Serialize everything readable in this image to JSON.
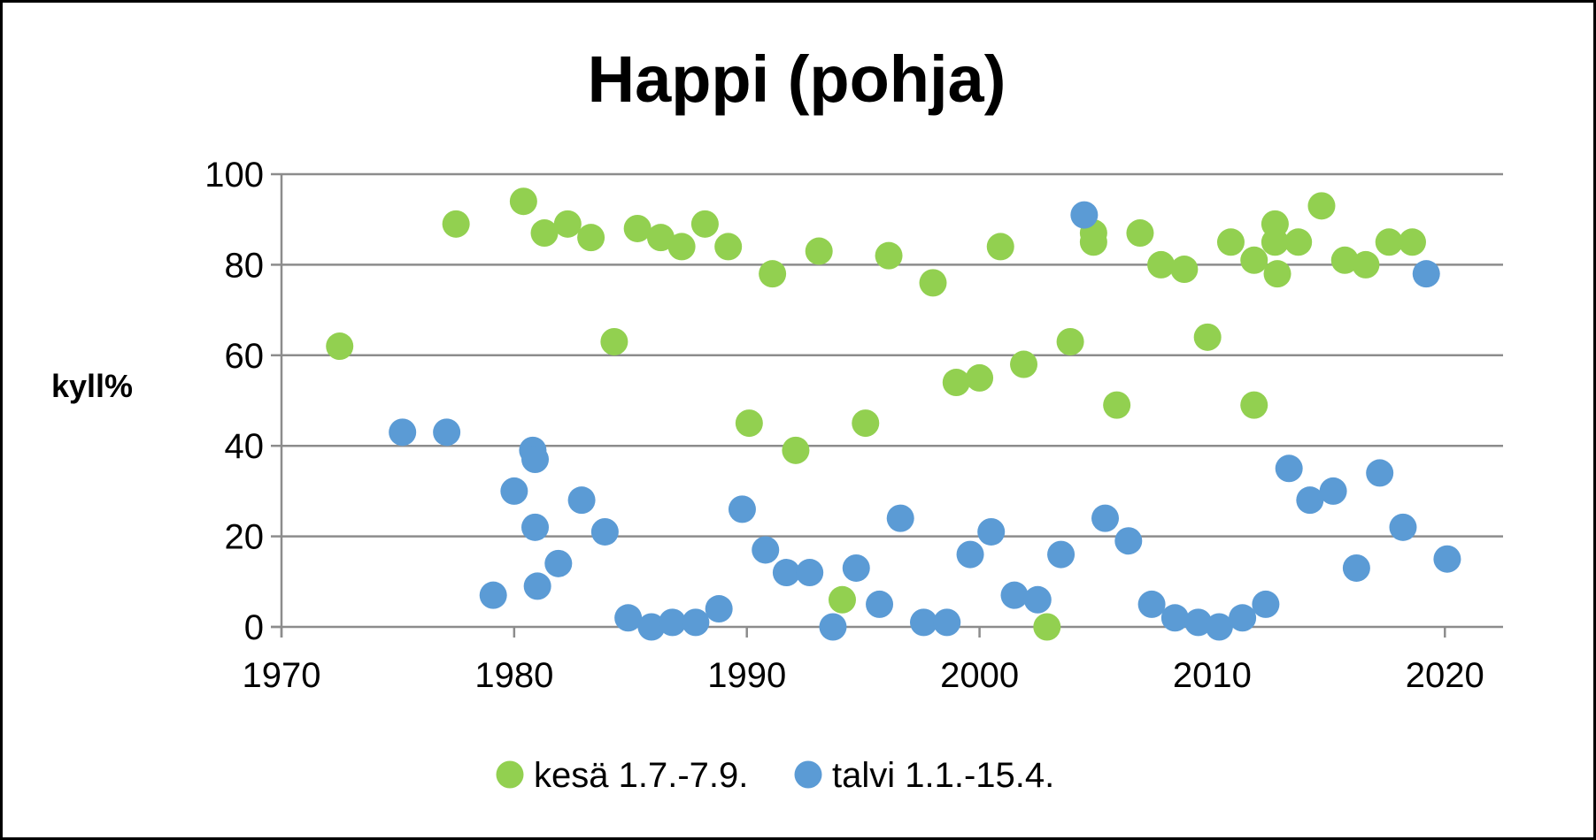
{
  "chart_data": {
    "type": "scatter",
    "title": "Happi (pohja)",
    "xlabel": "",
    "ylabel": "kyll%",
    "xlim": [
      1970,
      2022.5
    ],
    "ylim": [
      0,
      100
    ],
    "x_ticks": [
      1970,
      1980,
      1990,
      2000,
      2010,
      2020
    ],
    "y_ticks": [
      0,
      20,
      40,
      60,
      80,
      100
    ],
    "grid": "horizontal",
    "legend_position": "bottom",
    "series": [
      {
        "name": "kesä 1.7.-7.9.",
        "color": "#92d050",
        "points": [
          [
            1972.5,
            62
          ],
          [
            1977.5,
            89
          ],
          [
            1980.4,
            94
          ],
          [
            1981.3,
            87
          ],
          [
            1982.3,
            89
          ],
          [
            1983.3,
            86
          ],
          [
            1984.3,
            63
          ],
          [
            1985.3,
            88
          ],
          [
            1986.3,
            86
          ],
          [
            1987.2,
            84
          ],
          [
            1988.2,
            89
          ],
          [
            1989.2,
            84
          ],
          [
            1990.1,
            45
          ],
          [
            1991.1,
            78
          ],
          [
            1992.1,
            39
          ],
          [
            1993.1,
            83
          ],
          [
            1994.1,
            6
          ],
          [
            1995.1,
            45
          ],
          [
            1996.1,
            82
          ],
          [
            1998.0,
            76
          ],
          [
            1999.0,
            54
          ],
          [
            2000.0,
            55
          ],
          [
            2000.9,
            84
          ],
          [
            2001.9,
            58
          ],
          [
            2002.9,
            0
          ],
          [
            2003.9,
            63
          ],
          [
            2004.9,
            87
          ],
          [
            2004.9,
            85
          ],
          [
            2005.9,
            49
          ],
          [
            2006.9,
            87
          ],
          [
            2007.8,
            80
          ],
          [
            2008.8,
            79
          ],
          [
            2009.8,
            64
          ],
          [
            2010.8,
            85
          ],
          [
            2011.8,
            49
          ],
          [
            2011.8,
            81
          ],
          [
            2012.7,
            89
          ],
          [
            2012.7,
            85
          ],
          [
            2012.8,
            78
          ],
          [
            2013.7,
            85
          ],
          [
            2014.7,
            93
          ],
          [
            2015.7,
            81
          ],
          [
            2016.6,
            80
          ],
          [
            2017.6,
            85
          ],
          [
            2018.6,
            85
          ]
        ]
      },
      {
        "name": "talvi 1.1.-15.4.",
        "color": "#5b9bd5",
        "points": [
          [
            1975.2,
            43
          ],
          [
            1977.1,
            43
          ],
          [
            1979.1,
            7
          ],
          [
            1980.0,
            30
          ],
          [
            1980.8,
            39
          ],
          [
            1980.9,
            37
          ],
          [
            1980.9,
            22
          ],
          [
            1981.0,
            9
          ],
          [
            1981.9,
            14
          ],
          [
            1982.9,
            28
          ],
          [
            1983.9,
            21
          ],
          [
            1984.9,
            2
          ],
          [
            1985.9,
            0
          ],
          [
            1986.8,
            1
          ],
          [
            1987.8,
            1
          ],
          [
            1988.8,
            4
          ],
          [
            1989.8,
            26
          ],
          [
            1990.8,
            17
          ],
          [
            1991.7,
            12
          ],
          [
            1992.7,
            12
          ],
          [
            1993.7,
            0
          ],
          [
            1994.7,
            13
          ],
          [
            1995.7,
            5
          ],
          [
            1996.6,
            24
          ],
          [
            1997.6,
            1
          ],
          [
            1998.6,
            1
          ],
          [
            1999.6,
            16
          ],
          [
            2000.5,
            21
          ],
          [
            2001.5,
            7
          ],
          [
            2002.5,
            6
          ],
          [
            2003.5,
            16
          ],
          [
            2004.5,
            91
          ],
          [
            2005.4,
            24
          ],
          [
            2006.4,
            19
          ],
          [
            2007.4,
            5
          ],
          [
            2008.4,
            2
          ],
          [
            2009.4,
            1
          ],
          [
            2010.3,
            0
          ],
          [
            2011.3,
            2
          ],
          [
            2012.3,
            5
          ],
          [
            2013.3,
            35
          ],
          [
            2014.2,
            28
          ],
          [
            2015.2,
            30
          ],
          [
            2016.2,
            13
          ],
          [
            2017.2,
            34
          ],
          [
            2018.2,
            22
          ],
          [
            2019.2,
            78
          ],
          [
            2020.1,
            15
          ]
        ]
      }
    ]
  }
}
